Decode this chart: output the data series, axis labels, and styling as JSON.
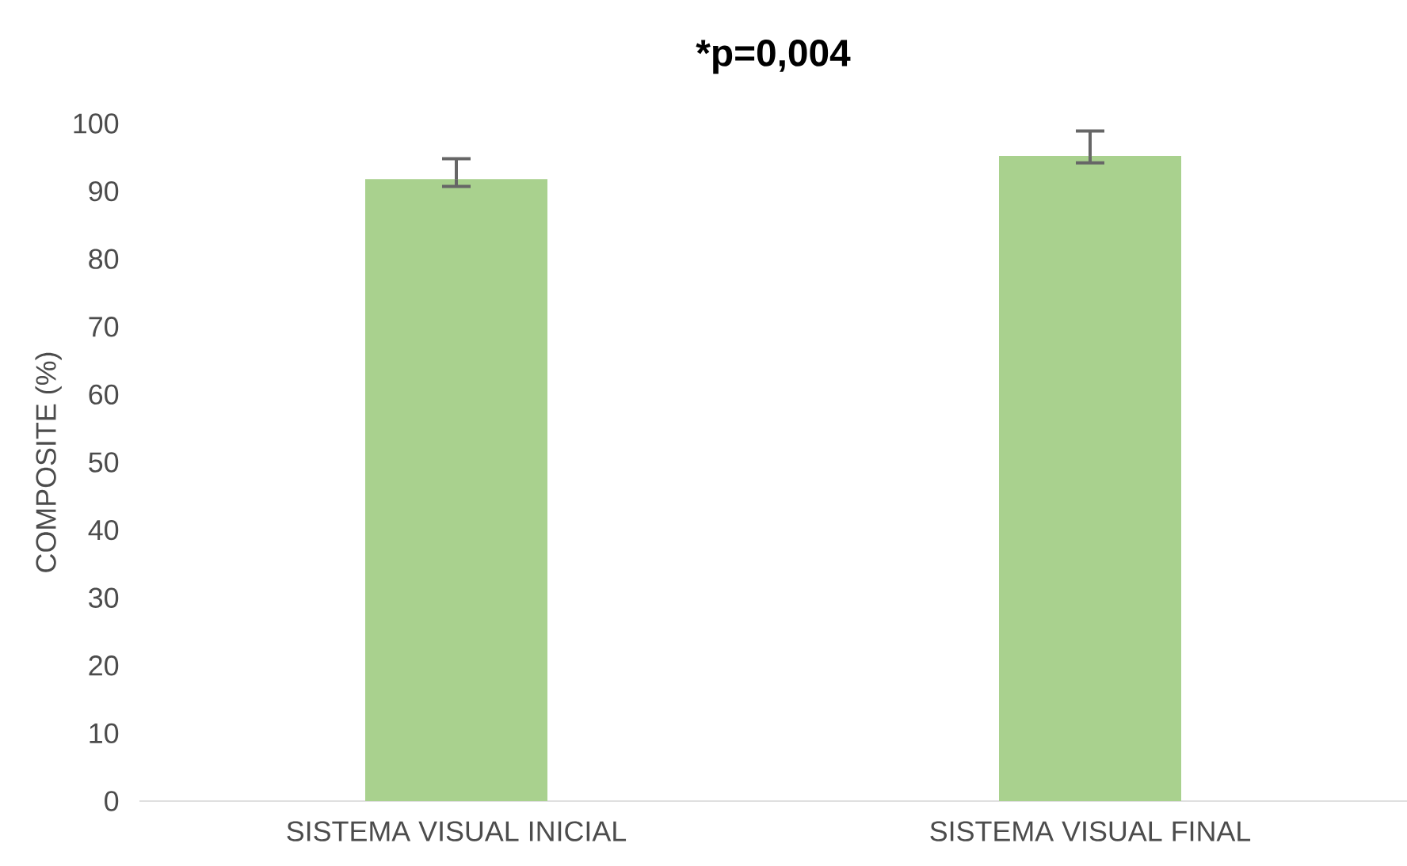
{
  "chart_data": {
    "type": "bar",
    "title": "*p=0,004",
    "ylabel": "COMPOSITE (%)",
    "categories": [
      "SISTEMA VISUAL INICIAL",
      "SISTEMA VISUAL FINAL"
    ],
    "values": [
      91.8,
      95.2
    ],
    "errors": [
      [
        90.7,
        94.8
      ],
      [
        94.2,
        98.9
      ]
    ],
    "color": "#a9d18e",
    "ylim": [
      0,
      100
    ],
    "yticks": [
      0,
      10,
      20,
      30,
      40,
      50,
      60,
      70,
      80,
      90,
      100
    ],
    "grid": false
  }
}
